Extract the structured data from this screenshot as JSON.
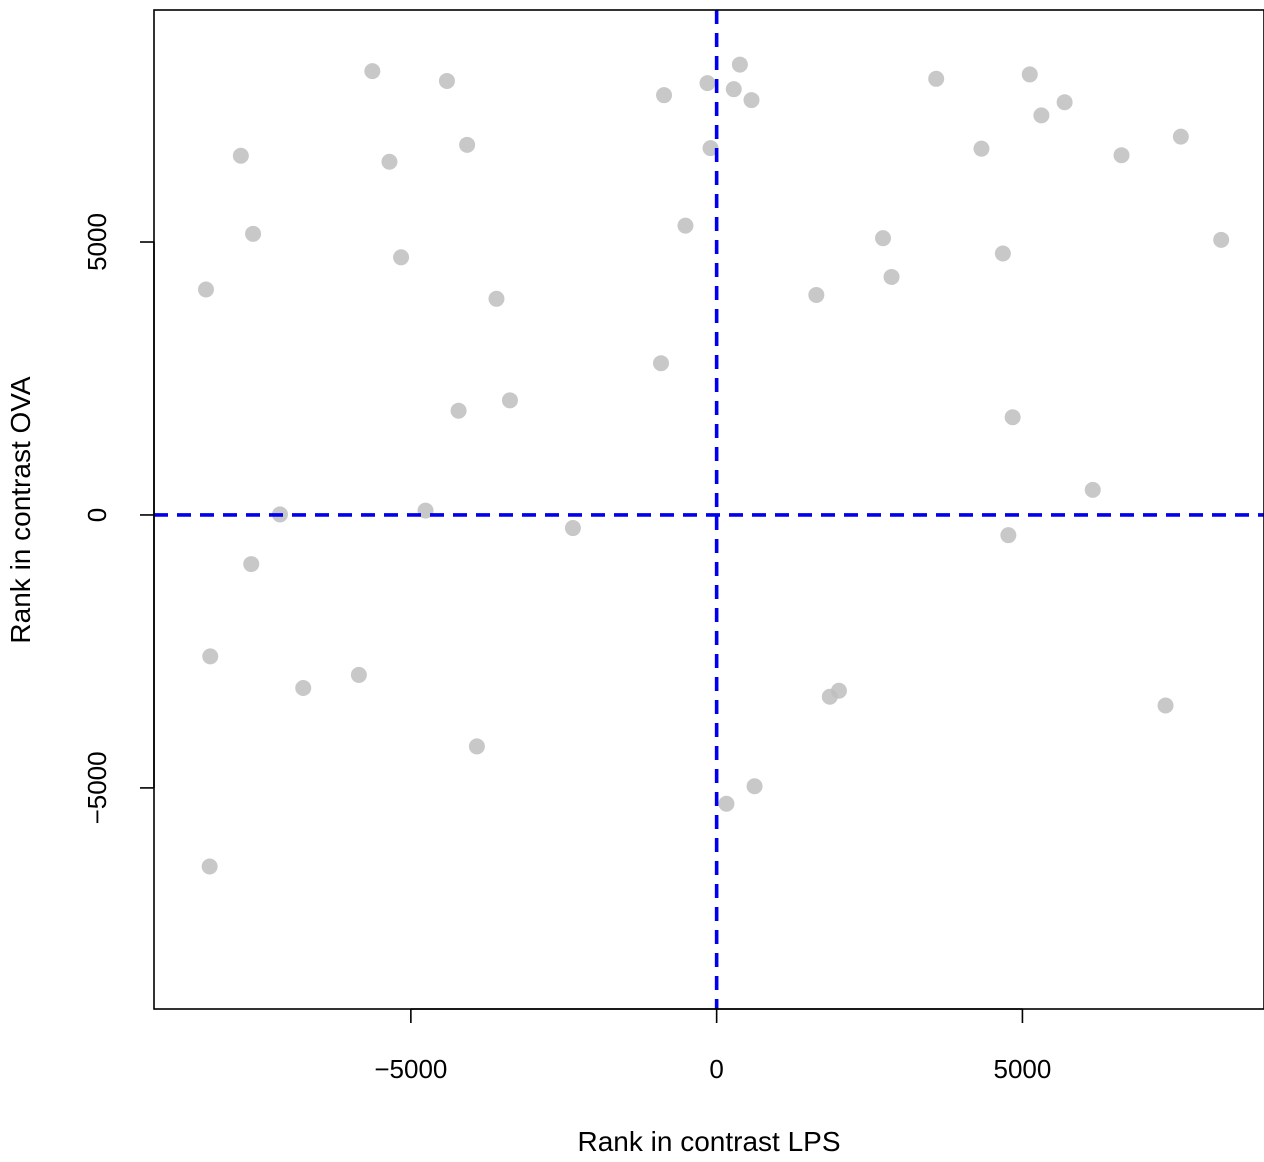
{
  "chart_data": {
    "type": "scatter",
    "title": "",
    "xlabel": "Rank in contrast LPS",
    "ylabel": "Rank in contrast OVA",
    "xlim": [
      -9200,
      8950
    ],
    "ylim": [
      -9050,
      9250
    ],
    "xticks": [
      -5000,
      0,
      5000
    ],
    "yticks": [
      -5000,
      0,
      5000
    ],
    "xtick_labels": [
      "−5000",
      "0",
      "5000"
    ],
    "ytick_labels": [
      "−5000",
      "0",
      "5000"
    ],
    "grid": false,
    "reference_lines": {
      "x": 0,
      "y": 0,
      "color": "#0000ee",
      "style": "dashed"
    },
    "point_color": "#bebebe",
    "series": [
      {
        "points": [
          [
            -5630,
            8130
          ],
          [
            -4410,
            7950
          ],
          [
            -7780,
            6580
          ],
          [
            -5350,
            6470
          ],
          [
            -4080,
            6780
          ],
          [
            -7580,
            5150
          ],
          [
            -8350,
            4130
          ],
          [
            -5160,
            4720
          ],
          [
            -3600,
            3960
          ],
          [
            -4220,
            1910
          ],
          [
            -3380,
            2100
          ],
          [
            -7140,
            10
          ],
          [
            -4760,
            80
          ],
          [
            -2350,
            -240
          ],
          [
            -7610,
            -900
          ],
          [
            -8280,
            -2590
          ],
          [
            -6760,
            -3170
          ],
          [
            -5850,
            -2930
          ],
          [
            -3920,
            -4240
          ],
          [
            -8290,
            -6440
          ],
          [
            -860,
            7690
          ],
          [
            -150,
            7910
          ],
          [
            280,
            7800
          ],
          [
            380,
            8250
          ],
          [
            570,
            7600
          ],
          [
            -100,
            6720
          ],
          [
            -510,
            5300
          ],
          [
            -910,
            2780
          ],
          [
            1630,
            4030
          ],
          [
            2720,
            5070
          ],
          [
            2860,
            4360
          ],
          [
            3590,
            7990
          ],
          [
            4330,
            6710
          ],
          [
            4680,
            4790
          ],
          [
            5120,
            8070
          ],
          [
            5310,
            7320
          ],
          [
            5690,
            7560
          ],
          [
            4840,
            1790
          ],
          [
            6620,
            6590
          ],
          [
            7590,
            6930
          ],
          [
            8250,
            5040
          ],
          [
            6150,
            460
          ],
          [
            4770,
            -370
          ],
          [
            1850,
            -3330
          ],
          [
            2000,
            -3220
          ],
          [
            7340,
            -3490
          ],
          [
            620,
            -4970
          ],
          [
            160,
            -5290
          ]
        ]
      }
    ]
  }
}
